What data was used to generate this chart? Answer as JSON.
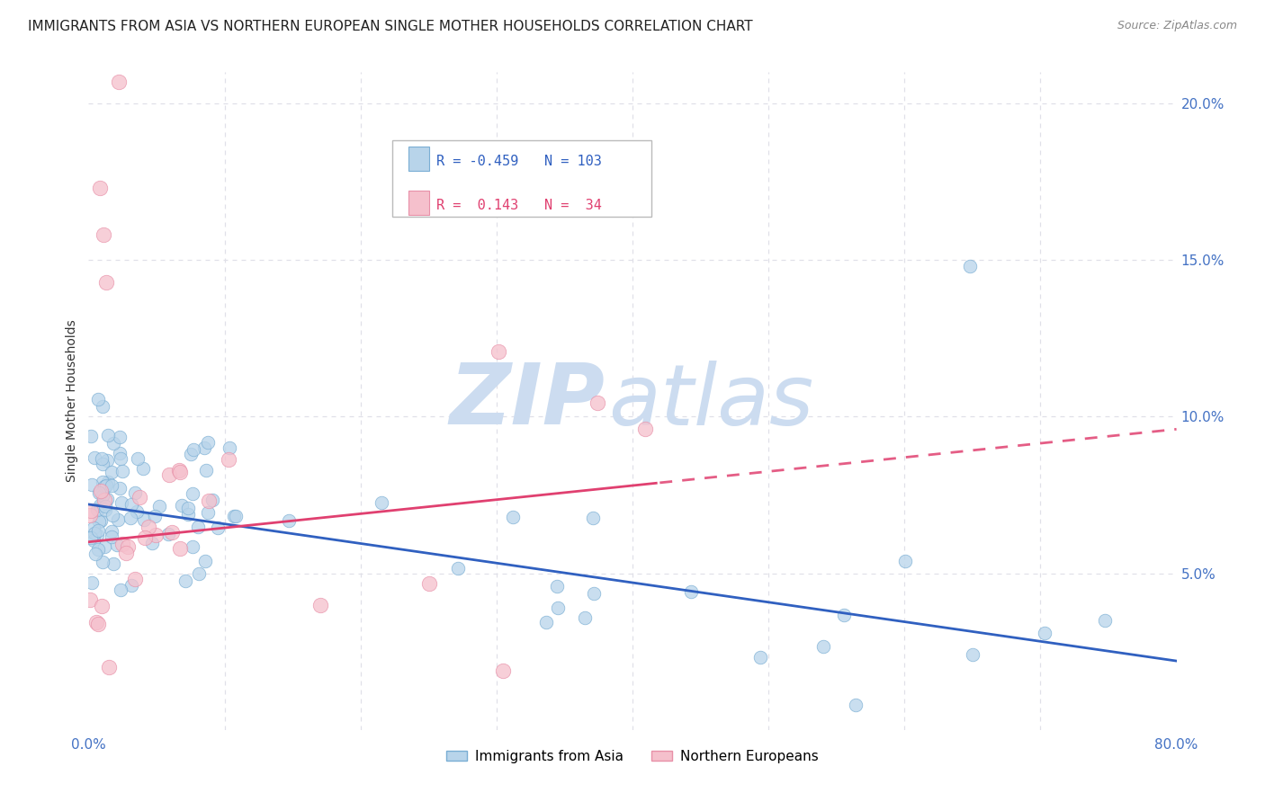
{
  "title": "IMMIGRANTS FROM ASIA VS NORTHERN EUROPEAN SINGLE MOTHER HOUSEHOLDS CORRELATION CHART",
  "source": "Source: ZipAtlas.com",
  "ylabel": "Single Mother Households",
  "xlim": [
    0,
    0.8
  ],
  "ylim": [
    0,
    0.21
  ],
  "yticks": [
    0.0,
    0.05,
    0.1,
    0.15,
    0.2
  ],
  "yticklabels_right": [
    "",
    "5.0%",
    "10.0%",
    "15.0%",
    "20.0%"
  ],
  "series1_label": "Immigrants from Asia",
  "series1_R": -0.459,
  "series1_N": 103,
  "series1_color": "#b8d4ea",
  "series1_edge": "#7aaed4",
  "series2_label": "Northern Europeans",
  "series2_R": 0.143,
  "series2_N": 34,
  "series2_color": "#f5c0cc",
  "series2_edge": "#e890a8",
  "trendline1_color": "#3060c0",
  "trendline2_color": "#e04070",
  "trendline1_start_y": 0.072,
  "trendline1_end_y": 0.022,
  "trendline2_start_y": 0.06,
  "trendline2_end_y": 0.096,
  "trendline2_solid_end_x": 0.42,
  "watermark_zip": "ZIP",
  "watermark_atlas": "atlas",
  "watermark_color": "#ccdcf0",
  "background_color": "#ffffff",
  "grid_color": "#e0e0e8",
  "axis_label_color": "#4472c4",
  "title_fontsize": 11,
  "legend_R1": "R = -0.459",
  "legend_N1": "N = 103",
  "legend_R2": "R =  0.143",
  "legend_N2": "N =  34"
}
